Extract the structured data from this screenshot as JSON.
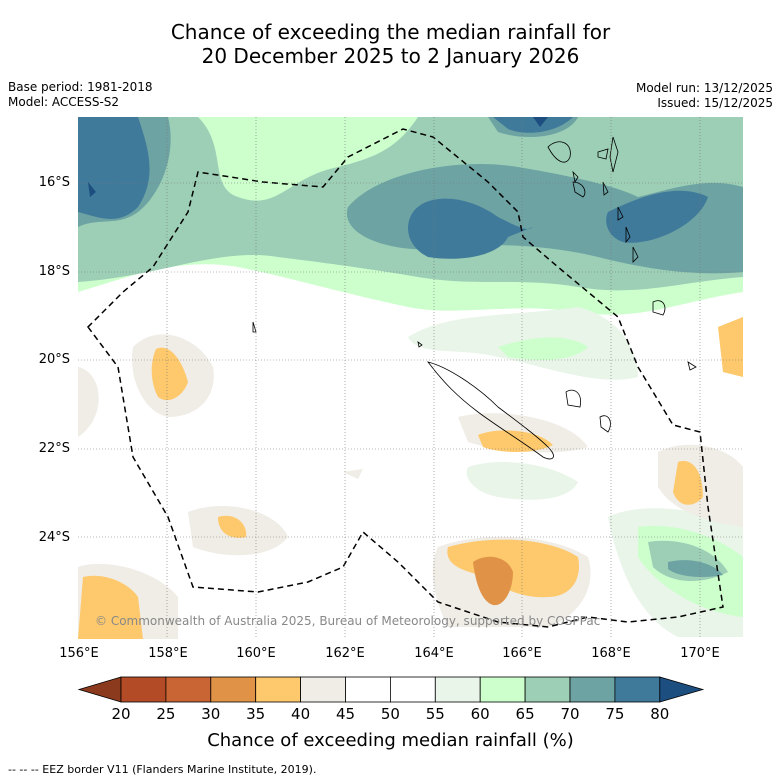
{
  "title": {
    "line1": "Chance of exceeding the median rainfall for",
    "line2": "20 December 2025 to 2 January 2026"
  },
  "meta": {
    "base_period": "Base period: 1981-2018",
    "model": "Model: ACCESS-S2",
    "model_run": "Model run: 13/12/2025",
    "issued": "Issued: 15/12/2025"
  },
  "axes": {
    "lat_labels": [
      "16°S",
      "18°S",
      "20°S",
      "22°S",
      "24°S"
    ],
    "lon_labels": [
      "156°E",
      "158°E",
      "160°E",
      "162°E",
      "164°E",
      "166°E",
      "168°E",
      "170°E"
    ]
  },
  "colorbar": {
    "ticks": [
      "20",
      "25",
      "30",
      "35",
      "40",
      "45",
      "50",
      "55",
      "60",
      "65",
      "70",
      "75",
      "80"
    ],
    "colors": [
      "#8b3a1e",
      "#b34c26",
      "#c96535",
      "#e09347",
      "#fdc96c",
      "#f0ece6",
      "#ffffff",
      "#ffffff",
      "#e8f5e8",
      "#ccffcc",
      "#9ccfb5",
      "#6da3a3",
      "#407a9b",
      "#1d4e80"
    ],
    "title": "Chance of exceeding median rainfall (%)"
  },
  "copyright": "© Commonwealth of Australia 2025, Bureau of Meteorology, supported by COSPPac",
  "footer": "-- -- -- EEZ border V11 (Flanders Marine Institute, 2019)."
}
